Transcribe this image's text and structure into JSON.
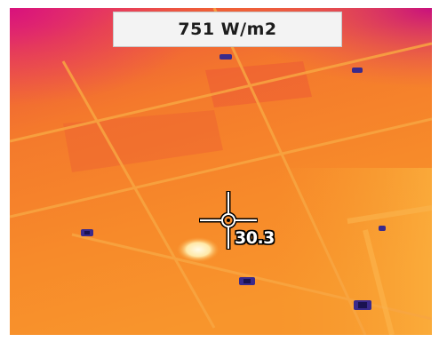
{
  "thermal_view": {
    "irradiance_label": "751 W/m2",
    "spot_temperature": "30.3",
    "palette": {
      "hot": "#ffe0a0",
      "warm": "#f7952a",
      "mid": "#f06a2a",
      "cool": "#e2483a",
      "cold": "#d21c7a",
      "clip": "#3a2a8c"
    },
    "icons": [
      "crosshair-icon"
    ]
  }
}
